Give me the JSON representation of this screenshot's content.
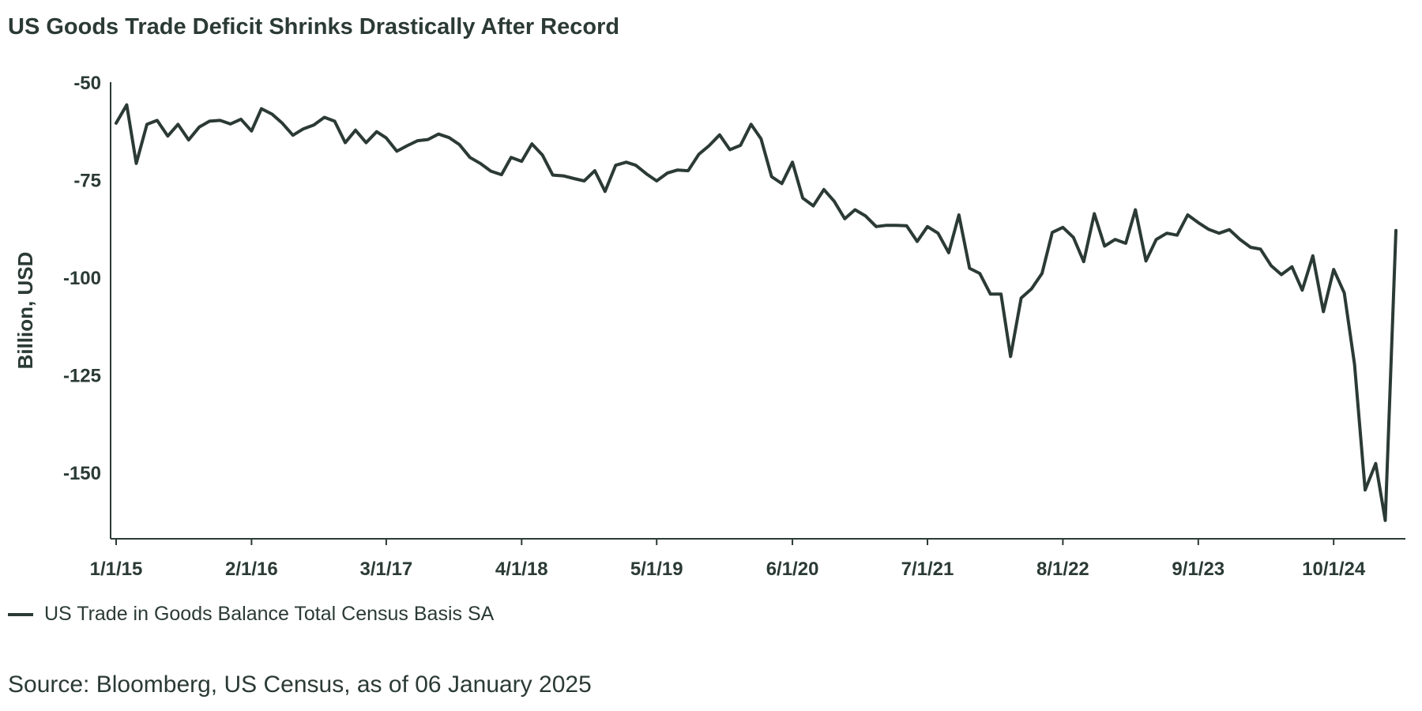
{
  "chart_data": {
    "type": "line",
    "title": "US Goods Trade Deficit Shrinks Drastically After Record",
    "ylabel": "Billion, USD",
    "xlabel": "",
    "ylim": [
      -167,
      -50
    ],
    "yticks": [
      -50,
      -75,
      -100,
      -125,
      -150
    ],
    "ytick_labels": [
      "-50",
      "-75",
      "-100",
      "-125",
      "-150"
    ],
    "xticks": [
      "2015-01-01",
      "2016-02-01",
      "2017-03-01",
      "2018-04-01",
      "2019-05-01",
      "2020-06-01",
      "2021-07-01",
      "2022-08-01",
      "2023-09-01",
      "2024-10-01"
    ],
    "xtick_labels": [
      "1/1/15",
      "2/1/16",
      "3/1/17",
      "4/1/18",
      "5/1/19",
      "6/1/20",
      "7/1/21",
      "8/1/22",
      "9/1/23",
      "10/1/24"
    ],
    "x_range": [
      "2015-01-01",
      "2025-01-01"
    ],
    "grid": false,
    "legend_position": "bottom-left",
    "line_color": "#2b3a35",
    "series": [
      {
        "name": "US Trade in Goods Balance Total Census Basis SA",
        "x": [
          "2015-01-01",
          "2015-02-01",
          "2015-03-01",
          "2015-04-01",
          "2015-05-01",
          "2015-06-01",
          "2015-07-01",
          "2015-08-01",
          "2015-09-01",
          "2015-10-01",
          "2015-11-01",
          "2015-12-01",
          "2016-01-01",
          "2016-02-01",
          "2016-03-01",
          "2016-04-01",
          "2016-05-01",
          "2016-06-01",
          "2016-07-01",
          "2016-08-01",
          "2016-09-01",
          "2016-10-01",
          "2016-11-01",
          "2016-12-01",
          "2017-01-01",
          "2017-02-01",
          "2017-03-01",
          "2017-04-01",
          "2017-05-01",
          "2017-06-01",
          "2017-07-01",
          "2017-08-01",
          "2017-09-01",
          "2017-10-01",
          "2017-11-01",
          "2017-12-01",
          "2018-01-01",
          "2018-02-01",
          "2018-03-01",
          "2018-04-01",
          "2018-05-01",
          "2018-06-01",
          "2018-07-01",
          "2018-08-01",
          "2018-09-01",
          "2018-10-01",
          "2018-11-01",
          "2018-12-01",
          "2019-01-01",
          "2019-02-01",
          "2019-03-01",
          "2019-04-01",
          "2019-05-01",
          "2019-06-01",
          "2019-07-01",
          "2019-08-01",
          "2019-09-01",
          "2019-10-01",
          "2019-11-01",
          "2019-12-01",
          "2020-01-01",
          "2020-02-01",
          "2020-03-01",
          "2020-04-01",
          "2020-05-01",
          "2020-06-01",
          "2020-07-01",
          "2020-08-01",
          "2020-09-01",
          "2020-10-01",
          "2020-11-01",
          "2020-12-01",
          "2021-01-01",
          "2021-02-01",
          "2021-03-01",
          "2021-04-01",
          "2021-05-01",
          "2021-06-01",
          "2021-07-01",
          "2021-08-01",
          "2021-09-01",
          "2021-10-01",
          "2021-11-01",
          "2021-12-01",
          "2022-01-01",
          "2022-02-01",
          "2022-03-01",
          "2022-04-01",
          "2022-05-01",
          "2022-06-01",
          "2022-07-01",
          "2022-08-01",
          "2022-09-01",
          "2022-10-01",
          "2022-11-01",
          "2022-12-01",
          "2023-01-01",
          "2023-02-01",
          "2023-03-01",
          "2023-04-01",
          "2023-05-01",
          "2023-06-01",
          "2023-07-01",
          "2023-08-01",
          "2023-09-01",
          "2023-10-01",
          "2023-11-01",
          "2023-12-01",
          "2024-01-01",
          "2024-02-01",
          "2024-03-01",
          "2024-04-01",
          "2024-05-01",
          "2024-06-01",
          "2024-07-01",
          "2024-08-01",
          "2024-09-01",
          "2024-10-01",
          "2024-11-01",
          "2024-12-01",
          "2025-01-01",
          "2025-02-01",
          "2025-03-01",
          "2025-04-01"
        ],
        "values": [
          -60.5,
          -55.8,
          -70.8,
          -60.8,
          -59.8,
          -63.8,
          -60.8,
          -64.8,
          -61.5,
          -60.0,
          -59.8,
          -60.7,
          -59.5,
          -62.5,
          -56.8,
          -58.2,
          -60.5,
          -63.6,
          -62.0,
          -61.0,
          -59.0,
          -60.0,
          -65.5,
          -62.3,
          -65.5,
          -62.7,
          -64.3,
          -67.7,
          -66.3,
          -65.0,
          -64.7,
          -63.3,
          -64.2,
          -66.0,
          -69.3,
          -70.8,
          -72.8,
          -73.7,
          -69.3,
          -70.3,
          -65.8,
          -68.7,
          -73.8,
          -74.0,
          -74.7,
          -75.3,
          -72.7,
          -78.0,
          -71.3,
          -70.5,
          -71.3,
          -73.5,
          -75.3,
          -73.3,
          -72.5,
          -72.7,
          -68.5,
          -66.3,
          -63.5,
          -67.3,
          -66.2,
          -60.8,
          -64.5,
          -74.2,
          -76.0,
          -70.5,
          -79.7,
          -81.7,
          -77.5,
          -80.5,
          -85.0,
          -82.7,
          -84.3,
          -87.0,
          -86.7,
          -86.7,
          -86.8,
          -90.8,
          -87.0,
          -88.7,
          -93.7,
          -84.0,
          -97.7,
          -99.0,
          -104.3,
          -104.3,
          -120.3,
          -105.3,
          -103.0,
          -99.0,
          -88.5,
          -87.2,
          -89.8,
          -96.0,
          -83.7,
          -92.0,
          -90.3,
          -91.3,
          -82.7,
          -95.8,
          -90.3,
          -88.7,
          -89.2,
          -84.0,
          -86.0,
          -87.7,
          -88.7,
          -87.8,
          -90.3,
          -92.3,
          -92.8,
          -97.0,
          -99.3,
          -97.3,
          -103.3,
          -94.5,
          -108.8,
          -98.0,
          -104.0,
          -122.3,
          -154.5,
          -147.7,
          -162.3,
          -88.0
        ]
      }
    ]
  },
  "legend": {
    "label": "US Trade in Goods Balance Total Census Basis SA"
  },
  "footer": {
    "source": "Source: Bloomberg, US Census, as of 06 January 2025"
  }
}
